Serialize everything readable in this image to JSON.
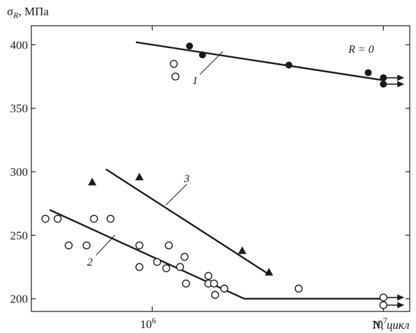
{
  "chart_data": {
    "type": "scatter",
    "title": "",
    "ylabel": "σR, МПа",
    "xlabel": "N, цикл",
    "xscale": "log",
    "xlim": [
      300000,
      13000000
    ],
    "ylim": [
      190,
      415
    ],
    "yticks": [
      200,
      250,
      300,
      350,
      400
    ],
    "xticks": [
      {
        "value": 1000000,
        "label_base": "10",
        "label_exp": "6"
      },
      {
        "value": 10000000,
        "label_base": "10",
        "label_exp": "7"
      }
    ],
    "annotations": {
      "curve1": "1",
      "curve2": "2",
      "curve3": "3",
      "r_label": "R = 0"
    },
    "series": [
      {
        "marker": "filled-circle",
        "points": [
          {
            "x": 1450000,
            "y": 399
          },
          {
            "x": 1650000,
            "y": 392
          },
          {
            "x": 3900000,
            "y": 384
          },
          {
            "x": 8600000,
            "y": 378
          },
          {
            "x": 10000000,
            "y": 374,
            "runout": true
          },
          {
            "x": 10000000,
            "y": 369,
            "runout": true
          }
        ],
        "fit_line": [
          [
            850000,
            402
          ],
          [
            10000000,
            372
          ]
        ]
      },
      {
        "marker": "open-circle",
        "points": [
          {
            "x": 1240000,
            "y": 385
          },
          {
            "x": 1260000,
            "y": 375
          },
          {
            "x": 345000,
            "y": 263
          },
          {
            "x": 390000,
            "y": 263
          },
          {
            "x": 435000,
            "y": 242
          },
          {
            "x": 520000,
            "y": 242
          },
          {
            "x": 560000,
            "y": 263
          },
          {
            "x": 660000,
            "y": 263
          },
          {
            "x": 880000,
            "y": 242
          },
          {
            "x": 880000,
            "y": 225
          },
          {
            "x": 1050000,
            "y": 229
          },
          {
            "x": 1150000,
            "y": 224
          },
          {
            "x": 1180000,
            "y": 242
          },
          {
            "x": 1320000,
            "y": 225
          },
          {
            "x": 1380000,
            "y": 233
          },
          {
            "x": 1400000,
            "y": 212
          },
          {
            "x": 1750000,
            "y": 218
          },
          {
            "x": 1750000,
            "y": 212
          },
          {
            "x": 1850000,
            "y": 212
          },
          {
            "x": 1870000,
            "y": 203
          },
          {
            "x": 2050000,
            "y": 208
          },
          {
            "x": 4300000,
            "y": 208
          },
          {
            "x": 10000000,
            "y": 201,
            "runout": true
          },
          {
            "x": 10000000,
            "y": 195,
            "runout": true
          }
        ],
        "fit_line": [
          [
            360000,
            270
          ],
          [
            2500000,
            200
          ],
          [
            10000000,
            200
          ]
        ]
      },
      {
        "marker": "filled-triangle",
        "points": [
          {
            "x": 550000,
            "y": 292
          },
          {
            "x": 880000,
            "y": 296
          },
          {
            "x": 2450000,
            "y": 238
          },
          {
            "x": 3200000,
            "y": 221
          }
        ],
        "fit_line": [
          [
            630000,
            302
          ],
          [
            3150000,
            220
          ]
        ]
      }
    ]
  }
}
